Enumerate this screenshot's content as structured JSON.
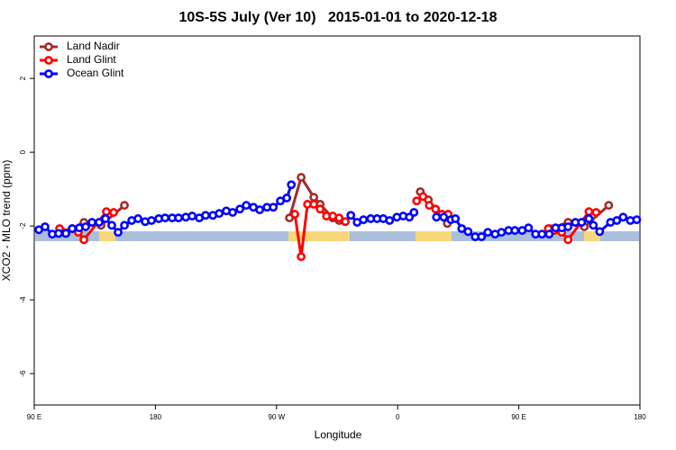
{
  "chart_data": {
    "type": "line",
    "title": "10S-5S July (Ver 10)   2015-01-01 to 2020-12-18",
    "x_label": "Longitude",
    "y_label": "XCO2 - MLO trend (ppm)",
    "xlim": [
      90,
      540
    ],
    "ylim": [
      -6.85,
      3.15
    ],
    "xticks": [
      {
        "value": 90,
        "label": "90 E"
      },
      180,
      {
        "value": 270,
        "label": "90 W"
      },
      {
        "value": 360,
        "label": "0"
      },
      {
        "value": 450,
        "label": "90 E"
      },
      {
        "value": 540,
        "label": "180"
      }
    ],
    "yticks": [
      2,
      0,
      -2,
      -4,
      -6
    ],
    "legend": "top-left",
    "series": [
      {
        "name": "Land Nadir",
        "color": "#a52a2a",
        "x": [
          118.2,
          126.9,
          139.6,
          157.0,
          220,
          279.6,
          288.3,
          297.7,
          302.4,
          311.8,
          316.5,
          350,
          376.8,
          382.8,
          396.9,
          430,
          473.2,
          486.6,
          498.7,
          516.8
        ],
        "values": [
          -2.07,
          -1.9,
          -1.98,
          -1.44,
          null,
          -1.78,
          -0.68,
          -1.22,
          -1.41,
          -1.78,
          -1.85,
          null,
          -1.07,
          -1.29,
          -1.93,
          null,
          -2.07,
          -1.9,
          -2.02,
          -1.44
        ]
      },
      {
        "name": "Land Glint",
        "color": "#ff0000",
        "x": [
          108.8,
          122.8,
          126.9,
          143.6,
          149.0,
          220,
          283.6,
          288.3,
          293.0,
          297.7,
          302.4,
          307.1,
          311.8,
          316.5,
          321.1,
          350,
          374.1,
          378.8,
          383.5,
          388.2,
          392.9,
          397.5,
          430,
          471.9,
          476.6,
          481.9,
          486.6,
          502.1,
          507.4
        ],
        "values": [
          -2.07,
          -2.17,
          -2.37,
          -1.61,
          -1.63,
          null,
          -1.68,
          -2.83,
          -1.41,
          -1.41,
          -1.54,
          -1.73,
          -1.73,
          -1.78,
          -1.88,
          null,
          -1.32,
          -1.2,
          -1.44,
          -1.54,
          -1.68,
          -1.68,
          null,
          -2.07,
          -2.12,
          -2.17,
          -2.37,
          -1.61,
          -1.63
        ]
      },
      {
        "name": "Ocean Glint",
        "color": "#0000ff",
        "x": [
          93.4,
          98.0,
          103.4,
          108.1,
          113.5,
          118.2,
          123.5,
          128.2,
          132.9,
          138.2,
          142.9,
          147.6,
          152.3,
          157.0,
          162.4,
          167.1,
          172.4,
          177.1,
          182.5,
          187.2,
          192.5,
          197.2,
          202.6,
          207.3,
          212.6,
          217.3,
          222.7,
          227.4,
          232.7,
          237.4,
          242.8,
          247.5,
          252.8,
          257.5,
          262.9,
          267.6,
          272.9,
          277.6,
          281.0,
          300,
          325.2,
          329.9,
          334.6,
          340.0,
          344.7,
          349.3,
          354.0,
          359.4,
          364.1,
          368.7,
          372.1,
          380,
          388.8,
          394.2,
          399.5,
          402.9,
          407.6,
          412.3,
          417.6,
          422.3,
          427.0,
          432.4,
          437.1,
          442.4,
          447.1,
          452.5,
          457.2,
          462.5,
          467.2,
          472.6,
          477.3,
          482.0,
          486.6,
          492.0,
          496.7,
          502.1,
          505.4,
          510.1,
          518.1,
          522.8,
          527.5,
          532.9,
          537.6
        ],
        "values": [
          -2.1,
          -2.02,
          -2.22,
          -2.2,
          -2.2,
          -2.07,
          -2.05,
          -2.02,
          -1.9,
          -1.9,
          -1.8,
          -1.98,
          -2.17,
          -1.98,
          -1.85,
          -1.8,
          -1.88,
          -1.85,
          -1.8,
          -1.78,
          -1.78,
          -1.78,
          -1.76,
          -1.73,
          -1.78,
          -1.71,
          -1.71,
          -1.66,
          -1.59,
          -1.63,
          -1.54,
          -1.44,
          -1.49,
          -1.56,
          -1.49,
          -1.49,
          -1.32,
          -1.24,
          -0.88,
          null,
          -1.71,
          -1.9,
          -1.83,
          -1.8,
          -1.8,
          -1.8,
          -1.85,
          -1.76,
          -1.73,
          -1.76,
          -1.63,
          null,
          -1.76,
          -1.76,
          -1.83,
          -1.8,
          -2.07,
          -2.15,
          -2.29,
          -2.29,
          -2.17,
          -2.22,
          -2.17,
          -2.12,
          -2.12,
          -2.12,
          -2.05,
          -2.22,
          -2.22,
          -2.22,
          -2.05,
          -2.05,
          -2.02,
          -1.9,
          -1.9,
          -1.8,
          -1.98,
          -2.15,
          -1.9,
          -1.85,
          -1.76,
          -1.85,
          -1.83
        ]
      }
    ]
  }
}
